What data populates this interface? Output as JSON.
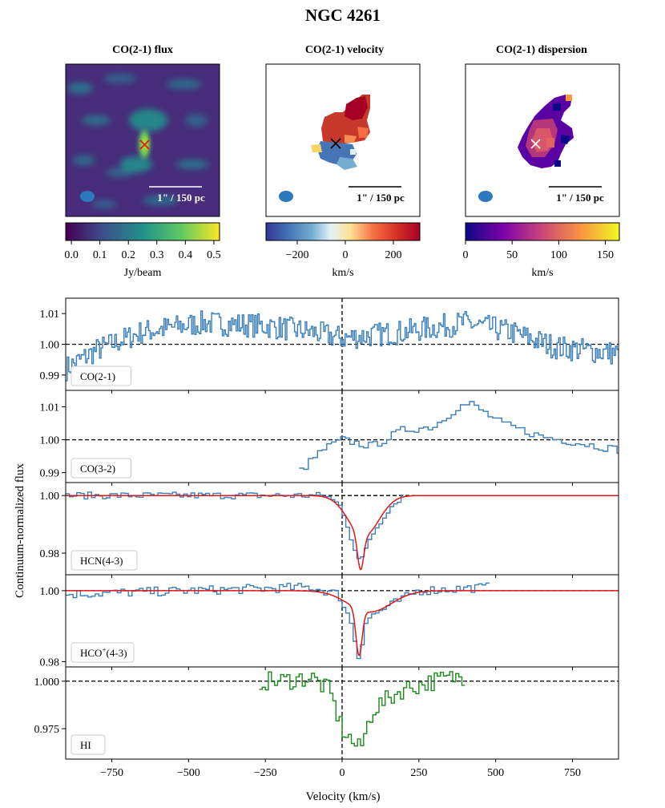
{
  "figure": {
    "title": "NGC 4261",
    "ylabel": "Continuum-normalized flux",
    "xlabel": "Velocity (km/s)",
    "x_ticks": [
      -750,
      -500,
      -250,
      0,
      250,
      500,
      750
    ],
    "x_range": [
      -900,
      900
    ]
  },
  "colors": {
    "spectrum_blue": "#3a7fb8",
    "spectrum_green": "#1a8a1a",
    "fit_red": "#e6141b",
    "beam_blue": "#2e78be"
  },
  "maps": [
    {
      "title": "CO(2-1) flux",
      "colormap": "viridis",
      "scalebar_label": "1\" / 150 pc",
      "center_marker": "x-marker",
      "marker_color": "#e6141b",
      "colorbar_label": "Jy/beam",
      "colorbar_ticks": [
        "0.0",
        "0.1",
        "0.2",
        "0.3",
        "0.4",
        "0.5"
      ],
      "colorbar_range": [
        -0.02,
        0.52
      ]
    },
    {
      "title": "CO(2-1) velocity",
      "colormap": "RdYlBu_r",
      "scalebar_label": "1\" / 150 pc",
      "center_marker": "x-marker",
      "marker_color": "#000000",
      "colorbar_label": "km/s",
      "colorbar_ticks": [
        "−200",
        "0",
        "200"
      ],
      "colorbar_tick_values": [
        -200,
        0,
        200
      ],
      "colorbar_range": [
        -330,
        310
      ]
    },
    {
      "title": "CO(2-1) dispersion",
      "colormap": "plasma",
      "scalebar_label": "1\" / 150 pc",
      "center_marker": "x-marker",
      "marker_color": "#ffffff",
      "colorbar_label": "km/s",
      "colorbar_ticks": [
        "0",
        "50",
        "100",
        "150"
      ],
      "colorbar_tick_values": [
        0,
        50,
        100,
        150
      ],
      "colorbar_range": [
        0,
        165
      ]
    }
  ],
  "chart_data": {
    "type": "line",
    "x_unit": "km/s",
    "panels": [
      {
        "label": "CO(2-1)",
        "ylim": [
          0.985,
          1.015
        ],
        "yticks": [
          "0.99",
          "1.00",
          "1.01"
        ],
        "ytick_values": [
          0.99,
          1.0,
          1.01
        ],
        "reference_level": 1.0,
        "color": "#3a7fb8",
        "step_width": 5,
        "x_range": [
          -900,
          900
        ],
        "anchors": [
          [
            -900,
            0.992
          ],
          [
            -800,
            0.998
          ],
          [
            -650,
            1.004
          ],
          [
            -450,
            1.007
          ],
          [
            -250,
            1.006
          ],
          [
            -100,
            1.004
          ],
          [
            0,
            1.002
          ],
          [
            200,
            1.004
          ],
          [
            400,
            1.007
          ],
          [
            550,
            1.004
          ],
          [
            700,
            0.999
          ],
          [
            900,
            0.997
          ]
        ],
        "noise": 0.004
      },
      {
        "label": "CO(3-2)",
        "ylim": [
          0.987,
          1.015
        ],
        "yticks": [
          "0.99",
          "1.00",
          "1.01"
        ],
        "ytick_values": [
          0.99,
          1.0,
          1.01
        ],
        "reference_level": 1.0,
        "color": "#3a7fb8",
        "step_width": 15,
        "x_range": [
          -140,
          900
        ],
        "anchors": [
          [
            -140,
            0.99
          ],
          [
            -60,
            0.997
          ],
          [
            0,
            1.0
          ],
          [
            100,
            0.998
          ],
          [
            200,
            1.003
          ],
          [
            300,
            1.004
          ],
          [
            380,
            1.01
          ],
          [
            420,
            1.011
          ],
          [
            520,
            1.005
          ],
          [
            650,
            1.001
          ],
          [
            900,
            0.997
          ]
        ],
        "noise": 0.0012
      },
      {
        "label": "HCN(4-3)",
        "ylim": [
          0.9725,
          1.0045
        ],
        "yticks": [
          "0.98",
          "1.00"
        ],
        "ytick_values": [
          0.98,
          1.0
        ],
        "reference_level": 1.0,
        "color": "#3a7fb8",
        "step_width": 12,
        "x_range": [
          -900,
          200
        ],
        "anchors": [
          [
            -900,
            1.0
          ],
          [
            -50,
            1.0
          ],
          [
            0,
            0.996
          ],
          [
            40,
            0.982
          ],
          [
            60,
            0.976
          ],
          [
            90,
            0.985
          ],
          [
            150,
            0.995
          ],
          [
            200,
            1.0
          ]
        ],
        "noise": 0.0012,
        "fit": {
          "baseline": 1.0,
          "narrow": {
            "center": 60,
            "depth": 0.012,
            "sigma": 10
          },
          "broad": {
            "center": 70,
            "depth": 0.014,
            "sigma": 50
          },
          "color": "#e6141b"
        }
      },
      {
        "label": "HCO+(4-3)",
        "label_main": "HCO",
        "label_sup": "+",
        "label_tail": "(4-3)",
        "ylim": [
          0.9785,
          1.0045
        ],
        "yticks": [
          "0.98",
          "1.00"
        ],
        "ytick_values": [
          0.98,
          1.0
        ],
        "reference_level": 1.0,
        "color": "#3a7fb8",
        "step_width": 12,
        "x_range": [
          -900,
          480
        ],
        "anchors": [
          [
            -900,
            0.999
          ],
          [
            -100,
            1.001
          ],
          [
            -10,
            0.999
          ],
          [
            30,
            0.991
          ],
          [
            55,
            0.981
          ],
          [
            80,
            0.992
          ],
          [
            140,
            0.995
          ],
          [
            250,
            1.0
          ],
          [
            480,
            1.001
          ]
        ],
        "noise": 0.0013,
        "fit": {
          "baseline": 1.0,
          "narrow": {
            "center": 55,
            "depth": 0.013,
            "sigma": 10
          },
          "broad": {
            "center": 90,
            "depth": 0.006,
            "sigma": 70
          },
          "color": "#e6141b"
        }
      },
      {
        "label": "HI",
        "ylim": [
          0.959,
          1.0075
        ],
        "yticks": [
          "0.975",
          "1.000"
        ],
        "ytick_values": [
          0.975,
          1.0
        ],
        "reference_level": 1.0,
        "color": "#1a8a1a",
        "step_width": 10,
        "x_range": [
          -270,
          400
        ],
        "anchors": [
          [
            -270,
            1.0
          ],
          [
            -200,
            1.0
          ],
          [
            -100,
            1.002
          ],
          [
            -40,
            0.995
          ],
          [
            0,
            0.975
          ],
          [
            40,
            0.967
          ],
          [
            60,
            0.964
          ],
          [
            100,
            0.985
          ],
          [
            200,
            0.996
          ],
          [
            300,
            1.0
          ],
          [
            400,
            1.003
          ]
        ],
        "noise": 0.005
      }
    ]
  }
}
